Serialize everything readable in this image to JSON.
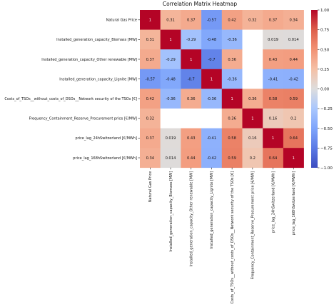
{
  "colors": {
    "low": "#3b4cc0",
    "mid": "#dddddd",
    "high": "#b40426",
    "missing": "#ffffff"
  },
  "chart_data": {
    "type": "heatmap",
    "title": "Correlation Matrix Heatmap",
    "labels": [
      "Natural Gas Price",
      "Installed_generation_capacity_Biomass [MW]",
      "Installed_generation_capacity_Other renewable [MW]",
      "Installed_generation_capacity_Lignite [MW]",
      "Costs_of_TSOs__without_costs_of_DSOs__Network security of the TSOs [€]",
      "Frequency_Containment_Reserve_Procurement price [€/MW]",
      "price_lag_24hSwitzerland [€/MWh]",
      "price_lag_168hSwitzerland [€/MWh]"
    ],
    "matrix": [
      [
        1,
        0.31,
        0.37,
        -0.57,
        0.42,
        0.32,
        0.37,
        0.34
      ],
      [
        0.31,
        1,
        -0.29,
        -0.48,
        -0.36,
        null,
        0.019,
        0.014
      ],
      [
        0.37,
        -0.29,
        1,
        -0.7,
        0.36,
        null,
        0.43,
        0.44
      ],
      [
        -0.57,
        -0.48,
        -0.7,
        1,
        -0.36,
        null,
        -0.41,
        -0.42
      ],
      [
        0.42,
        -0.36,
        0.36,
        -0.36,
        1,
        0.36,
        0.58,
        0.59
      ],
      [
        0.32,
        null,
        null,
        null,
        0.36,
        1,
        0.16,
        0.2
      ],
      [
        0.37,
        0.019,
        0.43,
        -0.41,
        0.58,
        0.16,
        1,
        0.64
      ],
      [
        0.34,
        0.014,
        0.44,
        -0.42,
        0.59,
        0.2,
        0.64,
        1
      ]
    ],
    "colorbar": {
      "range": [
        -1,
        1
      ],
      "ticks": [
        1.0,
        0.75,
        0.5,
        0.25,
        0.0,
        -0.25,
        -0.5,
        -0.75,
        -1.0
      ],
      "tick_labels": [
        "1.00",
        "0.75",
        "0.50",
        "0.25",
        "0.00",
        "−0.25",
        "−0.50",
        "−0.75",
        "−1.00"
      ],
      "colormap": "coolwarm"
    }
  }
}
